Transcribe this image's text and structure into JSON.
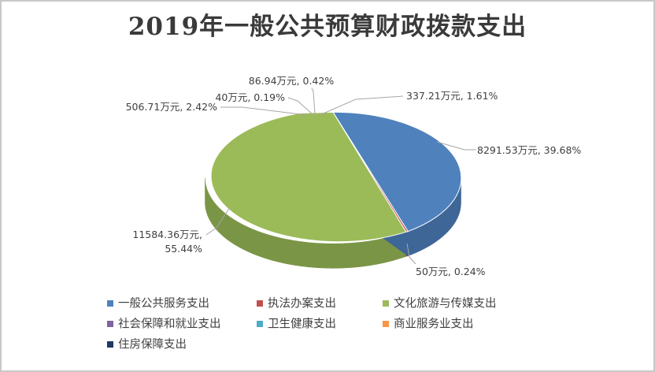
{
  "chart_data": {
    "type": "pie",
    "title": "2019年一般公共预算财政拨款支出",
    "unit": "万元",
    "legend_position": "bottom",
    "categories": [
      "一般公共服务支出",
      "执法办案支出",
      "文化旅游与传媒支出",
      "社会保障和就业支出",
      "卫生健康支出",
      "商业服务业支出",
      "住房保障支出"
    ],
    "values": [
      8291.53,
      50,
      11584.36,
      506.71,
      40,
      86.94,
      337.21
    ],
    "percents": [
      39.68,
      0.24,
      55.44,
      2.42,
      0.19,
      0.42,
      1.61
    ],
    "colors": [
      "#4f81bd",
      "#c0504d",
      "#9bbb59",
      "#8064a2",
      "#4bacc6",
      "#f79646",
      "#1f3864"
    ],
    "labels": [
      "8291.53万元, 39.68%",
      "50万元, 0.24%",
      "11584.36万元, 55.44%",
      "506.71万元, 2.42%",
      "40万元, 0.19%",
      "86.94万元, 0.42%",
      "337.21万元, 1.61%"
    ],
    "label_lines": [
      [
        "8291.53万元, 39.68%"
      ],
      [
        "50万元, 0.24%"
      ],
      [
        "11584.36万元,",
        "55.44%"
      ],
      [
        "506.71万元, 2.42%"
      ],
      [
        "40万元, 0.19%"
      ],
      [
        "86.94万元, 0.42%"
      ],
      [
        "337.21万元, 1.61%"
      ]
    ]
  }
}
